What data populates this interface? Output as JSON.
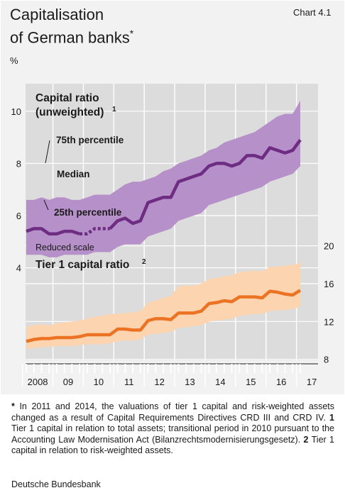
{
  "title_line1": "Capitalisation",
  "title_line2": "of German banks",
  "title_mark": "*",
  "chart_no": "Chart 4.1",
  "unit": "%",
  "footnote": {
    "star": "*",
    "text1": " In 2011 and 2014, the valuations of tier 1 capital and risk-weighted assets changed as a result of Capital Requirements Directives CRD III and CRD IV. ",
    "n1": "1",
    "text2": " Tier 1 capital in relation to total assets; transitional period in 2010 pursuant to the Accounting Law Modernisation Act (Bilanzrechtsmodernisierungsgesetz). ",
    "n2": "2",
    "text3": " Tier 1 capital in relation to risk-weighted assets."
  },
  "source": "Deutsche Bundesbank",
  "chart_data": [
    {
      "type": "area",
      "title": "Capital ratio (unweighted)",
      "title_line1": "Capital ratio",
      "title_line2": "(unweighted)",
      "title_note": "1",
      "ylim": [
        3.5,
        11
      ],
      "yticks": [
        4,
        6,
        8,
        10
      ],
      "x": [
        "2008Q1",
        "2008Q2",
        "2008Q3",
        "2008Q4",
        "2009Q1",
        "2009Q2",
        "2009Q3",
        "2009Q4",
        "2010Q1",
        "2010Q2",
        "2010Q3",
        "2010Q4",
        "2011Q1",
        "2011Q2",
        "2011Q3",
        "2011Q4",
        "2012Q1",
        "2012Q2",
        "2012Q3",
        "2012Q4",
        "2013Q1",
        "2013Q2",
        "2013Q3",
        "2013Q4",
        "2014Q1",
        "2014Q2",
        "2014Q3",
        "2014Q4",
        "2015Q1",
        "2015Q2",
        "2015Q3",
        "2015Q4",
        "2016Q1",
        "2016Q2",
        "2016Q3",
        "2016Q4",
        "2017Q1"
      ],
      "series": [
        {
          "name": "75th percentile",
          "values": [
            6.6,
            6.6,
            6.7,
            6.6,
            6.7,
            6.7,
            6.6,
            6.6,
            6.7,
            6.8,
            6.8,
            6.8,
            7.0,
            7.2,
            7.3,
            7.3,
            7.4,
            7.5,
            7.7,
            7.8,
            8.0,
            8.1,
            8.2,
            8.3,
            8.5,
            8.6,
            8.8,
            8.9,
            9.0,
            9.1,
            9.2,
            9.4,
            9.6,
            9.8,
            9.9,
            9.9,
            10.4
          ]
        },
        {
          "name": "Median",
          "values": [
            5.4,
            5.5,
            5.5,
            5.3,
            5.3,
            5.4,
            5.4,
            5.3,
            5.3,
            5.5,
            5.5,
            5.5,
            5.8,
            5.9,
            5.7,
            5.8,
            6.5,
            6.6,
            6.7,
            6.7,
            7.3,
            7.4,
            7.5,
            7.6,
            7.9,
            8.0,
            8.0,
            7.9,
            8.0,
            8.3,
            8.3,
            8.2,
            8.6,
            8.5,
            8.4,
            8.5,
            8.9
          ]
        },
        {
          "name": "25th percentile",
          "values": [
            4.5,
            4.5,
            4.5,
            4.4,
            4.4,
            4.5,
            4.5,
            4.5,
            4.5,
            4.6,
            4.6,
            4.6,
            4.8,
            4.9,
            4.9,
            4.9,
            5.2,
            5.3,
            5.4,
            5.5,
            5.8,
            5.9,
            6.0,
            6.1,
            6.4,
            6.5,
            6.6,
            6.7,
            6.8,
            6.9,
            7.0,
            7.1,
            7.3,
            7.4,
            7.5,
            7.6,
            7.9
          ]
        }
      ],
      "band_labels": {
        "p75": "75th percentile",
        "median": "Median",
        "p25": "25th percentile"
      },
      "colors": {
        "band": "#b690c9",
        "line": "#6e2c82"
      }
    },
    {
      "type": "area",
      "title": "Tier 1 capital ratio",
      "title_note": "2",
      "scale_note": "Reduced scale",
      "ylim": [
        7,
        20.5
      ],
      "yticks": [
        8,
        12,
        16,
        20
      ],
      "x_tick_labels": [
        "2008",
        "09",
        "10",
        "11",
        "12",
        "13",
        "14",
        "15",
        "16",
        "17"
      ],
      "series": [
        {
          "name": "75th percentile",
          "values": [
            11.4,
            11.6,
            11.7,
            11.6,
            11.8,
            11.9,
            12.0,
            12.1,
            12.3,
            12.5,
            12.6,
            12.8,
            12.8,
            12.9,
            13.0,
            13.1,
            14.0,
            14.2,
            14.5,
            14.7,
            15.7,
            15.8,
            15.8,
            16.0,
            16.5,
            16.6,
            16.8,
            16.9,
            17.2,
            17.3,
            17.4,
            17.3,
            17.8,
            17.8,
            17.9,
            18.0,
            18.2
          ]
        },
        {
          "name": "Median",
          "values": [
            9.9,
            10.1,
            10.2,
            10.2,
            10.3,
            10.3,
            10.3,
            10.4,
            10.6,
            10.6,
            10.6,
            10.6,
            11.2,
            11.2,
            11.1,
            11.1,
            12.1,
            12.3,
            12.3,
            12.2,
            12.9,
            12.9,
            12.9,
            13.1,
            13.9,
            14.0,
            14.2,
            14.1,
            14.6,
            14.6,
            14.6,
            14.5,
            15.2,
            15.1,
            14.9,
            14.8,
            15.3
          ]
        },
        {
          "name": "25th percentile",
          "values": [
            9.1,
            9.2,
            9.3,
            9.3,
            9.4,
            9.4,
            9.4,
            9.5,
            9.6,
            9.6,
            9.6,
            9.7,
            9.9,
            10.0,
            10.0,
            10.1,
            10.6,
            10.7,
            10.8,
            10.9,
            11.3,
            11.4,
            11.5,
            11.6,
            12.0,
            12.1,
            12.2,
            12.3,
            12.6,
            12.7,
            12.8,
            12.8,
            13.1,
            13.2,
            13.2,
            13.3,
            13.6
          ]
        }
      ],
      "colors": {
        "band": "#fcd4b0",
        "line": "#ec7324"
      }
    }
  ]
}
